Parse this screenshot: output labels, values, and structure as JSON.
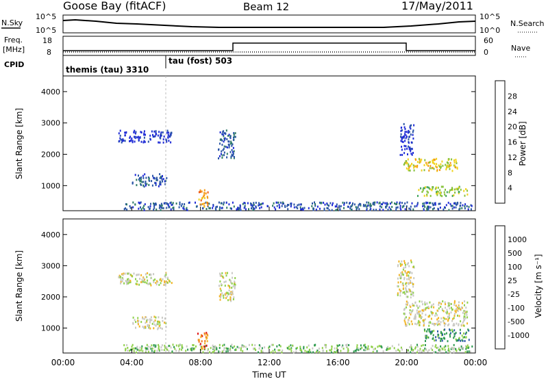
{
  "header": {
    "station": "Goose Bay (fitACF)",
    "beam": "Beam 12",
    "date": "17/May/2011"
  },
  "strip_labels": {
    "nsky": "N.Sky",
    "nsky_top": "10^5",
    "nsky_bottom": "10^0",
    "nsearch": "N.Search",
    "freq_line1": "Freq.",
    "freq_line2": "[MHz]",
    "freq_top": "18",
    "freq_bottom": "8",
    "nave_top": "60",
    "nave_bottom": "0",
    "nave": "Nave",
    "cpid": "CPID"
  },
  "cpid_segments": [
    {
      "label": "themis (tau) 3310",
      "start_h": 0,
      "end_h": 6
    },
    {
      "label": "tau (fost) 503",
      "start_h": 6,
      "end_h": 24
    }
  ],
  "colors": {
    "power": [
      "#1f2bd6",
      "#2a55a6",
      "#2e7a66",
      "#3fa35a",
      "#86c23a",
      "#f0d31e",
      "#f59a16",
      "#ee5a12",
      "#e01010"
    ],
    "velocity": [
      "#e01010",
      "#f0781a",
      "#f2b424",
      "#c9c9c4",
      "#8fd04a",
      "#2e9a50",
      "#2a5aa6",
      "#1f2bd6"
    ]
  },
  "chart_data": [
    {
      "type": "heatmap",
      "name": "Power",
      "ylabel": "Slant Range [km]",
      "yticks": [
        "1000",
        "2000",
        "3000",
        "4000"
      ],
      "ylim": [
        200,
        4500
      ],
      "xlim": [
        0,
        24
      ],
      "colorbar_label": "Power [dB]",
      "colorbar_ticks": [
        "4",
        "8",
        "12",
        "16",
        "20",
        "24",
        "28"
      ],
      "regions": [
        {
          "t0": 4.0,
          "t1": 6.0,
          "r0": 1000,
          "r1": 1400,
          "level": 1
        },
        {
          "t0": 3.2,
          "t1": 6.3,
          "r0": 2400,
          "r1": 2800,
          "level": 0
        },
        {
          "t0": 9.0,
          "t1": 10.0,
          "r0": 1900,
          "r1": 2800,
          "level": 1
        },
        {
          "t0": 19.6,
          "t1": 20.4,
          "r0": 2000,
          "r1": 3000,
          "level": 0
        },
        {
          "t0": 19.8,
          "t1": 23.0,
          "r0": 1500,
          "r1": 1900,
          "level": 5
        },
        {
          "t0": 20.6,
          "t1": 23.5,
          "r0": 700,
          "r1": 1000,
          "level": 4
        },
        {
          "t0": 3.5,
          "t1": 23.8,
          "r0": 250,
          "r1": 500,
          "level": 1
        },
        {
          "t0": 7.8,
          "t1": 8.4,
          "r0": 350,
          "r1": 900,
          "level": 6
        }
      ]
    },
    {
      "type": "heatmap",
      "name": "Velocity",
      "ylabel": "Slant Range [km]",
      "xlabel": "Time UT",
      "xticks": [
        "00:00",
        "04:00",
        "08:00",
        "12:00",
        "16:00",
        "20:00",
        "00:00"
      ],
      "yticks": [
        "1000",
        "2000",
        "3000",
        "4000"
      ],
      "ylim": [
        200,
        4500
      ],
      "xlim": [
        0,
        24
      ],
      "colorbar_label": "Velocity [m s⁻¹]",
      "colorbar_ticks": [
        "1000",
        "500",
        "100",
        "25",
        "-25",
        "-100",
        "-500",
        "-1000"
      ],
      "regions": [
        {
          "t0": 4.0,
          "t1": 6.0,
          "r0": 1000,
          "r1": 1400,
          "level": 3
        },
        {
          "t0": 3.2,
          "t1": 6.3,
          "r0": 2400,
          "r1": 2800,
          "level": 3
        },
        {
          "t0": 9.0,
          "t1": 10.0,
          "r0": 1900,
          "r1": 2800,
          "level": 3
        },
        {
          "t0": 19.4,
          "t1": 20.4,
          "r0": 2000,
          "r1": 3200,
          "level": 3
        },
        {
          "t0": 19.8,
          "t1": 23.5,
          "r0": 1100,
          "r1": 1900,
          "level": 3
        },
        {
          "t0": 21.0,
          "t1": 23.6,
          "r0": 600,
          "r1": 1000,
          "level": 5
        },
        {
          "t0": 3.5,
          "t1": 23.8,
          "r0": 250,
          "r1": 500,
          "level": 4
        },
        {
          "t0": 7.8,
          "t1": 8.4,
          "r0": 350,
          "r1": 900,
          "level": 1
        }
      ]
    }
  ]
}
